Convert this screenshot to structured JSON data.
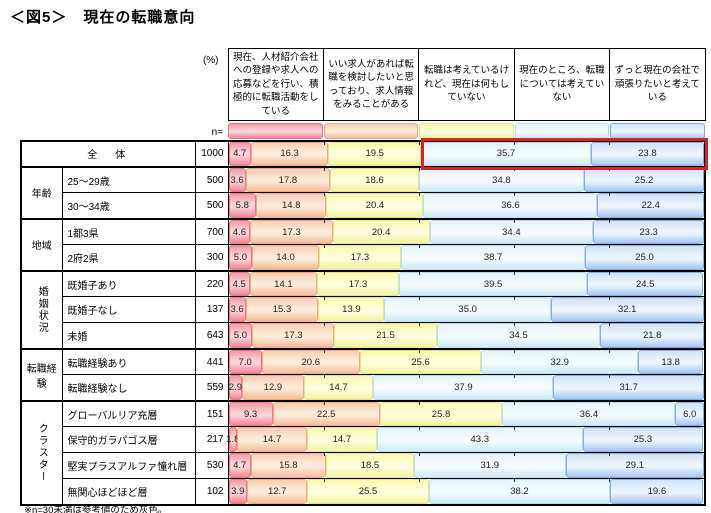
{
  "title": "＜図5＞　現在の転職意向",
  "percent_label": "(%)",
  "n_label": "n=",
  "footnote": "※n=30未満は参考値のため灰色。",
  "highlight_color": "#E0201A",
  "columns": [
    {
      "label": "現在、人材紹介会社への登録や求人への応募などを行い、積極的に転職活動をしている",
      "colors": {
        "top": "#F59AA4",
        "mid": "#FBD3D7",
        "bottom": "#F28492",
        "border": "#E87886"
      }
    },
    {
      "label": "いい求人があれば転職を検討したいと思っており、求人情報をみることがある",
      "colors": {
        "top": "#F8CFAE",
        "mid": "#FDEBDA",
        "bottom": "#F4BD94",
        "border": "#EBAC83"
      }
    },
    {
      "label": "転職は考えているけれど、現在は何もしていない",
      "colors": {
        "top": "#FAFAA8",
        "mid": "#FEFEDF",
        "bottom": "#F3F39B",
        "border": "#E3E390"
      }
    },
    {
      "label": "現在のところ、転職については考えていない",
      "colors": {
        "top": "#E4F4FB",
        "mid": "#F3FBFE",
        "bottom": "#CDEAF7",
        "border": "#B9DCEF"
      }
    },
    {
      "label": "ずっと現在の会社で頑張りたいと考えている",
      "colors": {
        "top": "#CFE4F8",
        "mid": "#EAF4FD",
        "bottom": "#A3C8EF",
        "border": "#7FAEDF"
      }
    }
  ],
  "rows": [
    {
      "merged": true,
      "group": "",
      "group_start": true,
      "group_rows": 1,
      "label": "全　体",
      "n": "1000",
      "values": [
        "4.7",
        "16.3",
        "19.5",
        "35.7",
        "23.8"
      ],
      "highlight": {
        "start_col": 3
      }
    },
    {
      "group": "年齢",
      "group_start": true,
      "group_rows": 2,
      "vertical": false,
      "label": "25～29歳",
      "n": "500",
      "values": [
        "3.6",
        "17.8",
        "18.6",
        "34.8",
        "25.2"
      ]
    },
    {
      "group": "年齢",
      "label": "30～34歳",
      "n": "500",
      "values": [
        "5.8",
        "14.8",
        "20.4",
        "36.6",
        "22.4"
      ]
    },
    {
      "group": "地域",
      "group_start": true,
      "group_rows": 2,
      "vertical": false,
      "label": "1都3県",
      "n": "700",
      "values": [
        "4.6",
        "17.3",
        "20.4",
        "34.4",
        "23.3"
      ]
    },
    {
      "group": "地域",
      "label": "2府2県",
      "n": "300",
      "values": [
        "5.0",
        "14.0",
        "17.3",
        "38.7",
        "25.0"
      ]
    },
    {
      "group": "婚姻状況",
      "group_start": true,
      "group_rows": 3,
      "vertical": true,
      "label": "既婚子あり",
      "n": "220",
      "values": [
        "4.5",
        "14.1",
        "17.3",
        "39.5",
        "24.5"
      ]
    },
    {
      "group": "婚姻状況",
      "label": "既婚子なし",
      "n": "137",
      "values": [
        "3.6",
        "15.3",
        "13.9",
        "35.0",
        "32.1"
      ]
    },
    {
      "group": "婚姻状況",
      "label": "未婚",
      "n": "643",
      "values": [
        "5.0",
        "17.3",
        "21.5",
        "34.5",
        "21.8"
      ]
    },
    {
      "group": "転職経験",
      "group_start": true,
      "group_rows": 2,
      "vertical": false,
      "label": "転職経験あり",
      "n": "441",
      "values": [
        "7.0",
        "20.6",
        "25.6",
        "32.9",
        "13.8"
      ]
    },
    {
      "group": "転職経験",
      "label": "転職経験なし",
      "n": "559",
      "values": [
        "2.9",
        "12.9",
        "14.7",
        "37.9",
        "31.7"
      ]
    },
    {
      "group": "クラスター",
      "group_start": true,
      "group_rows": 4,
      "vertical": true,
      "label": "グローバルリア充層",
      "n": "151",
      "values": [
        "9.3",
        "22.5",
        "25.8",
        "36.4",
        "6.0"
      ]
    },
    {
      "group": "クラスター",
      "label": "保守的ガラパゴス層",
      "n": "217",
      "values": [
        "1.8",
        "14.7",
        "14.7",
        "43.3",
        "25.3"
      ]
    },
    {
      "group": "クラスター",
      "label": "堅実プラスアルファ憧れ層",
      "n": "530",
      "values": [
        "4.7",
        "15.8",
        "18.5",
        "31.9",
        "29.1"
      ]
    },
    {
      "group": "クラスター",
      "label": "無関心ほどほど層",
      "n": "102",
      "values": [
        "3.9",
        "12.7",
        "25.5",
        "38.2",
        "19.6"
      ]
    }
  ],
  "chart_data": {
    "type": "bar",
    "stacked": true,
    "unit": "%",
    "title": "＜図5＞　現在の転職意向",
    "categories": [
      "全体",
      "25～29歳",
      "30～34歳",
      "1都3県",
      "2府2県",
      "既婚子あり",
      "既婚子なし",
      "未婚",
      "転職経験あり",
      "転職経験なし",
      "グローバルリア充層",
      "保守的ガラパゴス層",
      "堅実プラスアルファ憧れ層",
      "無関心ほどほど層"
    ],
    "category_groups": [
      "全体",
      "年齢",
      "年齢",
      "地域",
      "地域",
      "婚姻状況",
      "婚姻状況",
      "婚姻状況",
      "転職経験",
      "転職経験",
      "クラスター",
      "クラスター",
      "クラスター",
      "クラスター"
    ],
    "n": [
      1000,
      500,
      500,
      700,
      300,
      220,
      137,
      643,
      441,
      559,
      151,
      217,
      530,
      102
    ],
    "xlim": [
      0,
      100
    ],
    "series": [
      {
        "name": "現在、人材紹介会社への登録や求人への応募などを行い、積極的に転職活動をしている",
        "color": "#F28492",
        "values": [
          4.7,
          3.6,
          5.8,
          4.6,
          5.0,
          4.5,
          3.6,
          5.0,
          7.0,
          2.9,
          9.3,
          1.8,
          4.7,
          3.9
        ]
      },
      {
        "name": "いい求人があれば転職を検討したいと思っており、求人情報をみることがある",
        "color": "#F4BD94",
        "values": [
          16.3,
          17.8,
          14.8,
          17.3,
          14.0,
          14.1,
          15.3,
          17.3,
          20.6,
          12.9,
          22.5,
          14.7,
          15.8,
          12.7
        ]
      },
      {
        "name": "転職は考えているけれど、現在は何もしていない",
        "color": "#F3F39B",
        "values": [
          19.5,
          18.6,
          20.4,
          20.4,
          17.3,
          17.3,
          13.9,
          21.5,
          25.6,
          14.7,
          25.8,
          14.7,
          18.5,
          25.5
        ]
      },
      {
        "name": "現在のところ、転職については考えていない",
        "color": "#CDEAF7",
        "values": [
          35.7,
          34.8,
          36.6,
          34.4,
          38.7,
          39.5,
          35.0,
          34.5,
          32.9,
          37.9,
          36.4,
          43.3,
          31.9,
          38.2
        ]
      },
      {
        "name": "ずっと現在の会社で頑張りたいと考えている",
        "color": "#A3C8EF",
        "values": [
          23.8,
          25.2,
          22.4,
          23.3,
          25.0,
          24.5,
          32.1,
          21.8,
          13.8,
          31.7,
          6.0,
          25.3,
          29.1,
          19.6
        ]
      }
    ],
    "annotations": [
      "全体行の「転職は考えていない」35.7と「ずっと現在の会社で」23.8が赤枠で強調されている"
    ]
  }
}
